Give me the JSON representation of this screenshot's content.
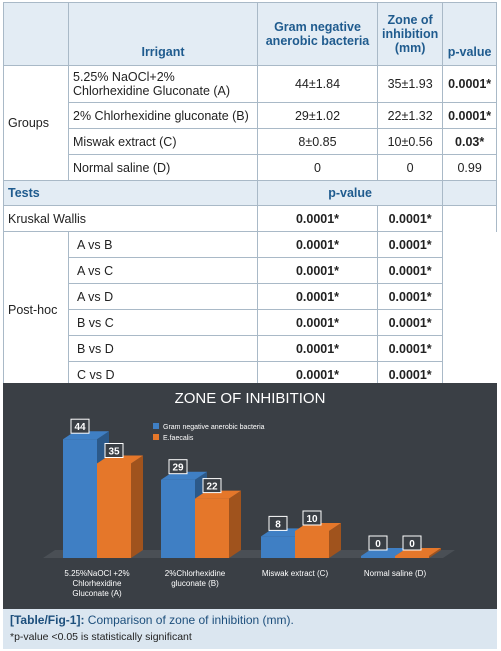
{
  "table": {
    "header": {
      "irrigant": "Irrigant",
      "gram_negative": "Gram negative anerobic bacteria",
      "zone": "Zone of inhibition (mm)",
      "pvalue": "p-value"
    },
    "groups_label": "Groups",
    "groups": [
      {
        "irrigant": "5.25% NaOCl+2% Chlorhexidine Gluconate (A)",
        "gram_negative": "44±1.84",
        "zone": "35±1.93",
        "pvalue": "0.0001*",
        "bold": true
      },
      {
        "irrigant": "2% Chlorhexidine gluconate (B)",
        "gram_negative": "29±1.02",
        "zone": "22±1.32",
        "pvalue": "0.0001*",
        "bold": true
      },
      {
        "irrigant": "Miswak extract (C)",
        "gram_negative": "8±0.85",
        "zone": "10±0.56",
        "pvalue": "0.03*",
        "bold": true
      },
      {
        "irrigant": "Normal saline (D)",
        "gram_negative": "0",
        "zone": "0",
        "pvalue": "0.99",
        "bold": false
      }
    ],
    "tests_header": {
      "tests": "Tests",
      "pvalue": "p-value"
    },
    "kruskal": {
      "label": "Kruskal Wallis",
      "v1": "0.0001*",
      "v2": "0.0001*"
    },
    "posthoc_label": "Post-hoc",
    "posthoc": [
      {
        "label": "A vs B",
        "v1": "0.0001*",
        "v2": "0.0001*"
      },
      {
        "label": "A vs C",
        "v1": "0.0001*",
        "v2": "0.0001*"
      },
      {
        "label": "A vs D",
        "v1": "0.0001*",
        "v2": "0.0001*"
      },
      {
        "label": "B vs C",
        "v1": "0.0001*",
        "v2": "0.0001*"
      },
      {
        "label": "B vs D",
        "v1": "0.0001*",
        "v2": "0.0001*"
      },
      {
        "label": "C vs D",
        "v1": "0.0001*",
        "v2": "0.0001*"
      }
    ]
  },
  "chart_data": {
    "type": "bar",
    "title": "ZONE OF INHIBITION",
    "categories": [
      "5.25%NaOCl +2% Chlorhexidine Gluconate (A)",
      "2%Chlorhexidine gluconate (B)",
      "Miswak extract (C)",
      "Normal saline (D)"
    ],
    "category_lines": [
      [
        "5.25%NaOCl +2%",
        "Chlorhexidine",
        "Gluconate (A)"
      ],
      [
        "2%Chlorhexidine",
        "gluconate (B)"
      ],
      [
        "Miswak extract (C)"
      ],
      [
        "Normal saline (D)"
      ]
    ],
    "series": [
      {
        "name": "Gram negative anerobic bacteria",
        "values": [
          44,
          29,
          8,
          0
        ],
        "color": "#3f7fc4"
      },
      {
        "name": "E.faecalis",
        "values": [
          35,
          22,
          10,
          0
        ],
        "color": "#e5772a"
      }
    ],
    "ylim": [
      0,
      50
    ],
    "legend": "top-left",
    "grid": false,
    "background": "#3a3f45"
  },
  "caption": {
    "label": "[Table/Fig-1]:",
    "text": " Comparison of zone of inhibition (mm).",
    "note": "*p-value <0.05 is statistically significant"
  }
}
